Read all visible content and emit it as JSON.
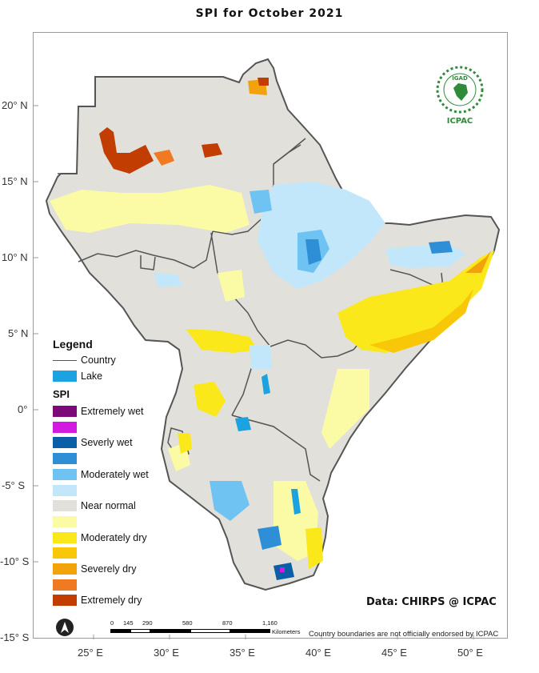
{
  "title": "SPI   for   October  2021",
  "y_ticks": [
    "20° N",
    "15° N",
    "10° N",
    "5° N",
    "0°",
    "-5° S",
    "-10° S",
    "-15° S"
  ],
  "x_ticks": [
    "25° E",
    "30° E",
    "35° E",
    "40° E",
    "45° E",
    "50° E"
  ],
  "legend": {
    "heading": "Legend",
    "country": "Country",
    "lake": "Lake",
    "spi_heading": "SPI",
    "classes": [
      {
        "label": "Extremely wet",
        "color": "#7b0a78"
      },
      {
        "label": "",
        "color": "#d21be0"
      },
      {
        "label": "Severly wet",
        "color": "#0a5fa6"
      },
      {
        "label": "",
        "color": "#2f8fd6"
      },
      {
        "label": "Moderately wet",
        "color": "#6fc3f2"
      },
      {
        "label": "",
        "color": "#c2e7fb"
      },
      {
        "label": "Near normal",
        "color": "#e2e0da"
      },
      {
        "label": "",
        "color": "#fbfba6"
      },
      {
        "label": "Moderately dry",
        "color": "#fbe81a"
      },
      {
        "label": "",
        "color": "#f8c708"
      },
      {
        "label": "Severely dry",
        "color": "#f2a20a"
      },
      {
        "label": "",
        "color": "#f07a22"
      },
      {
        "label": "Extremely dry",
        "color": "#c23d02"
      }
    ],
    "country_color": "#555555",
    "lake_color": "#1aa3e0"
  },
  "scale_bar": {
    "ticks": [
      "0",
      "145",
      "290",
      "580",
      "870",
      "1,160"
    ],
    "unit": "Kilometers"
  },
  "credit": "Data: CHIRPS @ ICPAC",
  "disclaimer": "Country boundaries are not officially endorsed by ICPAC",
  "logo": {
    "top_text": "IGAD",
    "bottom_text": "ICPAC",
    "color": "#2e8b3a"
  },
  "north_arrow_icon": "north-arrow-icon"
}
